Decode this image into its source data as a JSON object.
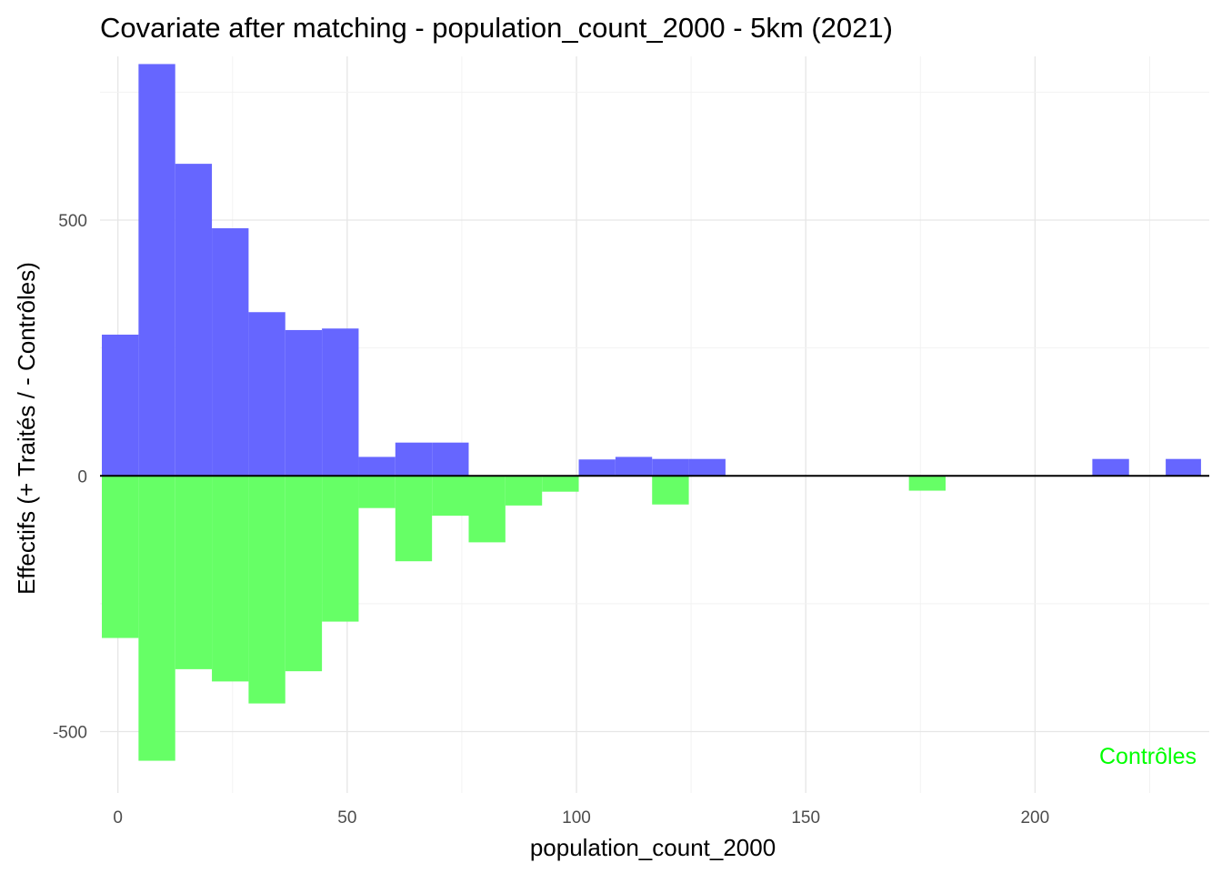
{
  "chart_data": {
    "type": "bar",
    "title": "Covariate after matching - population_count_2000 - 5km (2021)",
    "xlabel": "population_count_2000",
    "ylabel": "Effectifs (+ Traités / - Contrôles)",
    "xlim": [
      -3.9,
      238
    ],
    "ylim": [
      -620,
      820
    ],
    "x_ticks": [
      0,
      50,
      100,
      150,
      200
    ],
    "x_tick_labels": [
      "0",
      "50",
      "100",
      "150",
      "200"
    ],
    "y_ticks": [
      500,
      0,
      -500
    ],
    "y_tick_labels": [
      "500",
      "0",
      "-500"
    ],
    "grid": true,
    "zero_line": true,
    "annotation": {
      "text": "Contrôles",
      "placement": "bottom-right",
      "color": "#00ff00"
    },
    "series": [
      {
        "role": "treated",
        "color": "#6666ff",
        "bins": [
          {
            "x0": -3.5,
            "x1": 4.5,
            "value": 276
          },
          {
            "x0": 4.5,
            "x1": 12.5,
            "value": 805
          },
          {
            "x0": 12.5,
            "x1": 20.5,
            "value": 610
          },
          {
            "x0": 20.5,
            "x1": 28.5,
            "value": 484
          },
          {
            "x0": 28.5,
            "x1": 36.5,
            "value": 320
          },
          {
            "x0": 36.5,
            "x1": 44.5,
            "value": 285
          },
          {
            "x0": 44.5,
            "x1": 52.5,
            "value": 288
          },
          {
            "x0": 52.5,
            "x1": 60.5,
            "value": 37
          },
          {
            "x0": 60.5,
            "x1": 68.5,
            "value": 65
          },
          {
            "x0": 68.5,
            "x1": 76.5,
            "value": 65
          },
          {
            "x0": 100.5,
            "x1": 108.5,
            "value": 32
          },
          {
            "x0": 108.5,
            "x1": 116.5,
            "value": 37
          },
          {
            "x0": 116.5,
            "x1": 124.5,
            "value": 33
          },
          {
            "x0": 124.5,
            "x1": 132.5,
            "value": 33
          },
          {
            "x0": 212.5,
            "x1": 220.5,
            "value": 33
          },
          {
            "x0": 228.5,
            "x1": 236.2,
            "value": 33
          }
        ]
      },
      {
        "role": "controls",
        "color": "#66ff66",
        "bins": [
          {
            "x0": -3.5,
            "x1": 4.5,
            "value": -317
          },
          {
            "x0": 4.5,
            "x1": 12.5,
            "value": -557
          },
          {
            "x0": 12.5,
            "x1": 20.5,
            "value": -378
          },
          {
            "x0": 20.5,
            "x1": 28.5,
            "value": -402
          },
          {
            "x0": 28.5,
            "x1": 36.5,
            "value": -445
          },
          {
            "x0": 36.5,
            "x1": 44.5,
            "value": -382
          },
          {
            "x0": 44.5,
            "x1": 52.5,
            "value": -285
          },
          {
            "x0": 52.5,
            "x1": 60.5,
            "value": -63
          },
          {
            "x0": 60.5,
            "x1": 68.5,
            "value": -167
          },
          {
            "x0": 68.5,
            "x1": 76.5,
            "value": -78
          },
          {
            "x0": 76.5,
            "x1": 84.5,
            "value": -130
          },
          {
            "x0": 84.5,
            "x1": 92.5,
            "value": -58
          },
          {
            "x0": 92.5,
            "x1": 100.5,
            "value": -31
          },
          {
            "x0": 116.5,
            "x1": 124.5,
            "value": -56
          },
          {
            "x0": 172.5,
            "x1": 180.5,
            "value": -29
          }
        ]
      }
    ]
  }
}
